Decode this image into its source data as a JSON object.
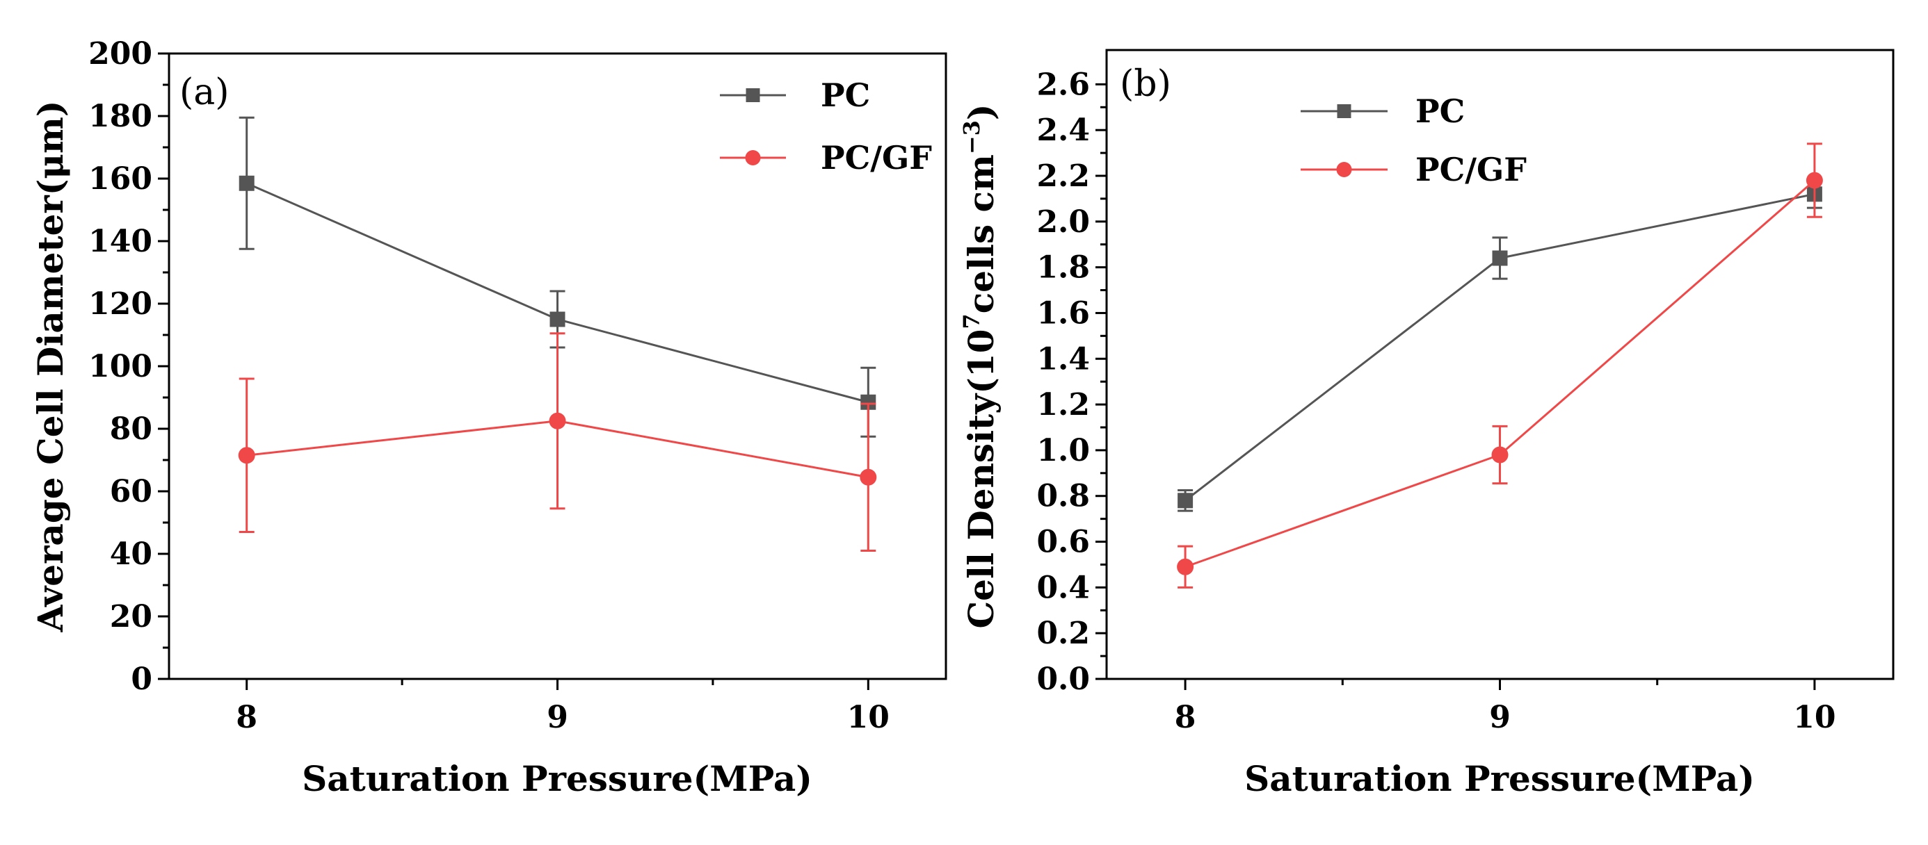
{
  "colors": {
    "PC": "#555555",
    "PC/GF": "#f04848",
    "axis": "#000000"
  },
  "chart_data": [
    {
      "type": "line",
      "panel_label": "(a)",
      "xlabel": "Saturation Pressure(MPa)",
      "ylabel": "Average Cell Diameter(μm)",
      "x": [
        8,
        9,
        10
      ],
      "x_tick_labels": [
        "8",
        "9",
        "10"
      ],
      "xlim": [
        7.75,
        10.25
      ],
      "ylim": [
        0,
        200
      ],
      "y_ticks": [
        0,
        20,
        40,
        60,
        80,
        100,
        120,
        140,
        160,
        180,
        200
      ],
      "y_tick_labels": [
        "0",
        "20",
        "40",
        "60",
        "80",
        "100",
        "120",
        "140",
        "160",
        "180",
        "200"
      ],
      "legend_position": "top-right",
      "series": [
        {
          "name": "PC",
          "marker": "square",
          "values": [
            158.5,
            115,
            88.5
          ],
          "errors": [
            21,
            9,
            11
          ]
        },
        {
          "name": "PC/GF",
          "marker": "circle",
          "values": [
            71.5,
            82.5,
            64.5
          ],
          "errors": [
            24.5,
            28,
            23.5
          ]
        }
      ]
    },
    {
      "type": "line",
      "panel_label": "(b)",
      "xlabel": "Saturation Pressure(MPa)",
      "ylabel_parts": [
        "Cell Density(10",
        "7",
        "cells cm",
        "−3",
        ")"
      ],
      "x": [
        8,
        9,
        10
      ],
      "x_tick_labels": [
        "8",
        "9",
        "10"
      ],
      "xlim": [
        7.75,
        10.25
      ],
      "ylim": [
        0,
        2.75
      ],
      "y_ticks": [
        0,
        0.2,
        0.4,
        0.6,
        0.8,
        1.0,
        1.2,
        1.4,
        1.6,
        1.8,
        2.0,
        2.2,
        2.4,
        2.6
      ],
      "y_tick_labels": [
        "0.0",
        "0.2",
        "0.4",
        "0.6",
        "0.8",
        "1.0",
        "1.2",
        "1.4",
        "1.6",
        "1.8",
        "2.0",
        "2.2",
        "2.4",
        "2.6"
      ],
      "legend_position": "top-left",
      "series": [
        {
          "name": "PC",
          "marker": "square",
          "values": [
            0.78,
            1.84,
            2.12
          ],
          "errors": [
            0.045,
            0.09,
            0.06
          ]
        },
        {
          "name": "PC/GF",
          "marker": "circle",
          "values": [
            0.49,
            0.98,
            2.18
          ],
          "errors": [
            0.09,
            0.125,
            0.16
          ]
        }
      ]
    }
  ]
}
